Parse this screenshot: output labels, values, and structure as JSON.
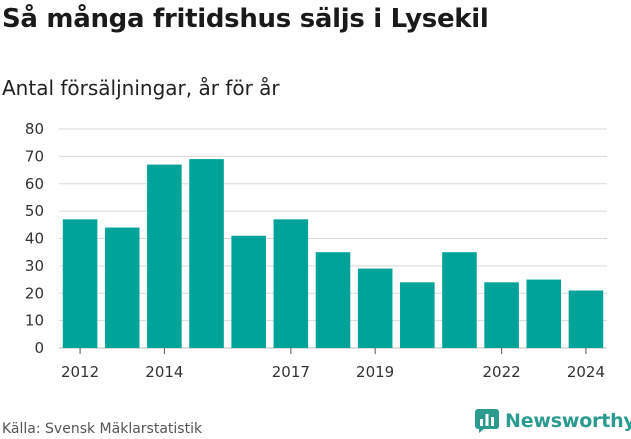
{
  "title": "Så många fritidshus säljs i Lysekil",
  "subtitle": "Antal försäljningar, år för år",
  "source": "Källa: Svensk Mäklarstatistik",
  "brand": {
    "name": "Newsworthy",
    "icon": "bar-chart-logo-icon",
    "color": "#2b9a8f"
  },
  "chart_data": {
    "type": "bar",
    "categories": [
      2012,
      2013,
      2014,
      2015,
      2016,
      2017,
      2018,
      2019,
      2020,
      2021,
      2022,
      2023,
      2024
    ],
    "values": [
      47,
      44,
      67,
      69,
      41,
      47,
      35,
      29,
      24,
      35,
      24,
      25,
      21
    ],
    "x_tick_labels": [
      "2012",
      "2014",
      "2017",
      "2019",
      "2022",
      "2024"
    ],
    "ylim": [
      0,
      80
    ],
    "y_ticks": [
      0,
      10,
      20,
      30,
      40,
      50,
      60,
      70,
      80
    ],
    "grid": true,
    "bar_color": "#00a398",
    "grid_color": "#d9d9d9"
  }
}
